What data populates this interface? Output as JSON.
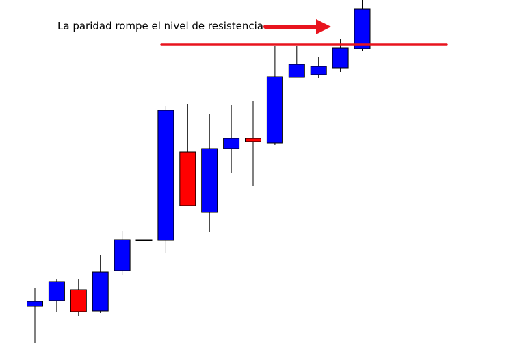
{
  "colors": {
    "bullish": "#0000ff",
    "bearish": "#ff0000",
    "wick": "#000000",
    "outline": "#000000",
    "resistance_line": "#e8141e",
    "arrow": "#e8141e",
    "background": "#ffffff"
  },
  "chart_data": {
    "type": "candlestick",
    "title": "",
    "xlabel": "",
    "ylabel": "",
    "grid": false,
    "ylim": [
      0,
      527
    ],
    "candles": [
      {
        "open": 80,
        "close": 87,
        "high": 107,
        "low": 27
      },
      {
        "open": 88,
        "close": 116,
        "high": 120,
        "low": 72
      },
      {
        "open": 104,
        "close": 72,
        "high": 120,
        "low": 66
      },
      {
        "open": 73,
        "close": 130,
        "high": 155,
        "low": 70
      },
      {
        "open": 132,
        "close": 177,
        "high": 190,
        "low": 126
      },
      {
        "open": 177,
        "close": 176,
        "high": 220,
        "low": 152
      },
      {
        "open": 176,
        "close": 366,
        "high": 372,
        "low": 157
      },
      {
        "open": 305,
        "close": 227,
        "high": 375,
        "low": 227
      },
      {
        "open": 217,
        "close": 310,
        "high": 360,
        "low": 188
      },
      {
        "open": 310,
        "close": 325,
        "high": 374,
        "low": 274
      },
      {
        "open": 325,
        "close": 320,
        "high": 380,
        "low": 255
      },
      {
        "open": 318,
        "close": 415,
        "high": 460,
        "low": 316
      },
      {
        "open": 414,
        "close": 433,
        "high": 460,
        "low": 414
      },
      {
        "open": 418,
        "close": 430,
        "high": 444,
        "low": 413
      },
      {
        "open": 428,
        "close": 457,
        "high": 470,
        "low": 422
      },
      {
        "open": 456,
        "close": 514,
        "high": 527,
        "low": 452
      }
    ],
    "resistance_level": 462,
    "annotations": [
      {
        "text": "La paridad rompe el nivel de resistencia",
        "arrow": "right"
      }
    ]
  }
}
